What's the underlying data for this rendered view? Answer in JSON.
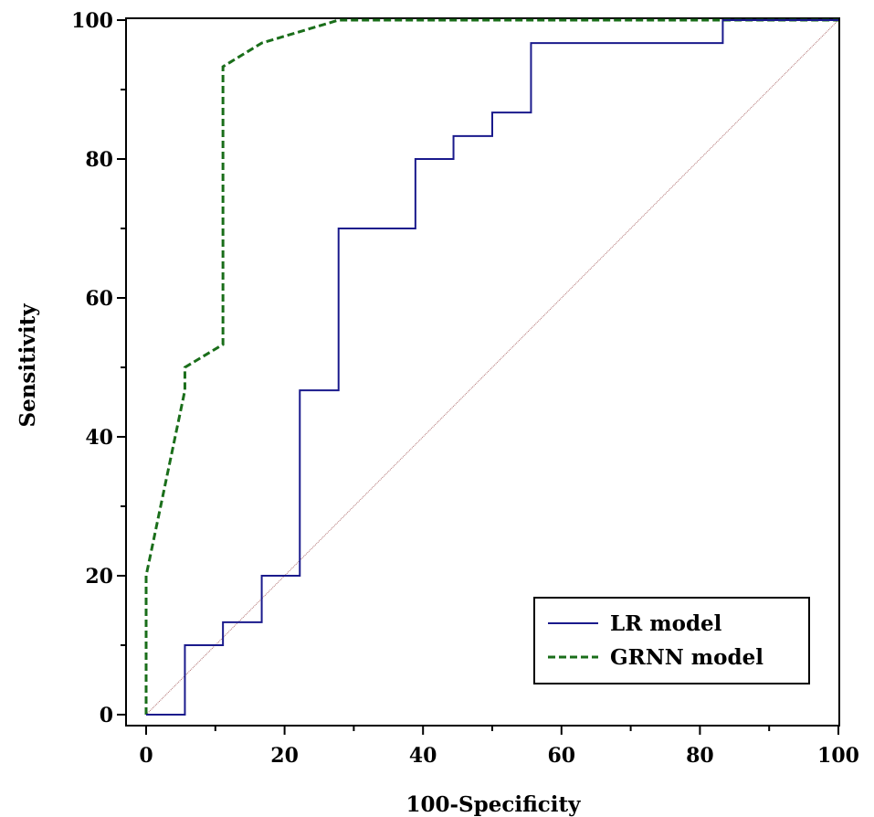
{
  "chart_data": {
    "type": "line",
    "title": "",
    "xlabel": "100-Specificity",
    "ylabel": "Sensitivity",
    "xlim": [
      0,
      100
    ],
    "ylim": [
      0,
      100
    ],
    "xticks": [
      "0",
      "20",
      "40",
      "60",
      "80",
      "100"
    ],
    "yticks": [
      "0",
      "20",
      "40",
      "60",
      "80",
      "100"
    ],
    "legend_position": "bottom-right",
    "series": [
      {
        "name": "LR model",
        "style": "solid",
        "color": "#1a1a8c",
        "x": [
          0,
          5.6,
          5.6,
          11.1,
          11.1,
          16.7,
          16.7,
          22.2,
          22.2,
          27.8,
          27.8,
          38.9,
          38.9,
          44.4,
          44.4,
          50.0,
          50.0,
          55.6,
          55.6,
          83.3,
          83.3,
          100
        ],
        "y": [
          0,
          0,
          10.0,
          10.0,
          13.3,
          13.3,
          20.0,
          20.0,
          46.7,
          46.7,
          70.0,
          70.0,
          80.0,
          80.0,
          83.3,
          83.3,
          86.7,
          86.7,
          96.7,
          96.7,
          100,
          100
        ]
      },
      {
        "name": "GRNN model",
        "style": "dashed",
        "color": "#1a6e1a",
        "x": [
          0,
          0,
          5.6,
          5.6,
          11.1,
          11.1,
          16.7,
          27.8,
          100
        ],
        "y": [
          0,
          20.0,
          46.7,
          50.0,
          53.3,
          93.3,
          96.7,
          100,
          100
        ]
      },
      {
        "name": "",
        "style": "reference",
        "color": "#b07070",
        "x": [
          0,
          100
        ],
        "y": [
          0,
          100
        ]
      }
    ]
  }
}
